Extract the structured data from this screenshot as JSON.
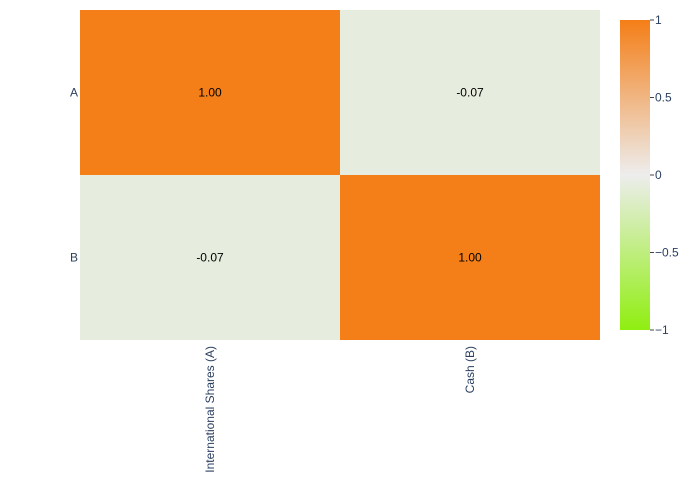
{
  "chart_data": {
    "type": "heatmap",
    "title": "",
    "xlabel": "",
    "ylabel": "",
    "x_categories": [
      "International Shares (A)",
      "Cash (B)"
    ],
    "y_categories": [
      "A",
      "B"
    ],
    "values": [
      [
        1.0,
        -0.07
      ],
      [
        -0.07,
        1.0
      ]
    ],
    "cell_labels": [
      [
        "1.00",
        "-0.07"
      ],
      [
        "-0.07",
        "1.00"
      ]
    ],
    "zlim": [
      -1,
      1
    ],
    "colorscale": [
      [
        0.0,
        "#90ee10"
      ],
      [
        0.5,
        "#ededed"
      ],
      [
        1.0,
        "#f47e17"
      ]
    ],
    "colorbar": {
      "ticks": [
        1,
        0.5,
        0,
        -0.5,
        -1
      ],
      "tick_labels": [
        "1",
        "0.5",
        "0",
        "−0.5",
        "−1"
      ]
    },
    "x_tick_rotation": "vertical",
    "grid": false,
    "legend": "colorbar-right"
  }
}
